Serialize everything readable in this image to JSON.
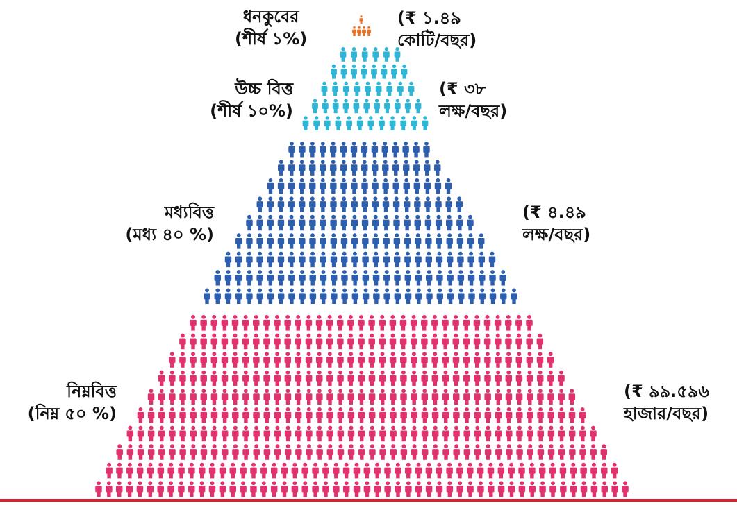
{
  "colors": {
    "rich": "#e8712a",
    "upper": "#2fb6d6",
    "middle": "#2e5fae",
    "lower": "#e0326f",
    "rule": "#e11d2b"
  },
  "tiers": [
    {
      "key": "rich",
      "label_line1": "ধনকুবের",
      "label_line2": "(শীর্ষ ১%)",
      "income_line1": "(₹ ১.৪৯",
      "income_line2": "কোটি/বছর)"
    },
    {
      "key": "upper",
      "label_line1": "উচ্চ বিত্ত",
      "label_line2": "(শীর্ষ ১০%)",
      "income_line1": "(₹ ৩৮",
      "income_line2": "লক্ষ/বছর)"
    },
    {
      "key": "middle",
      "label_line1": "মধ্যবিত্ত",
      "label_line2": "(মধ্য ৪০ %)",
      "income_line1": "(₹ ৪.৪৯",
      "income_line2": "লক্ষ/বছর)"
    },
    {
      "key": "lower",
      "label_line1": "নিম্নবিত্ত",
      "label_line2": "(নিম্ন ৫০ %)",
      "income_line1": "(₹ ৯৯.৫৯৬",
      "income_line2": "হাজার/বছর)"
    }
  ]
}
